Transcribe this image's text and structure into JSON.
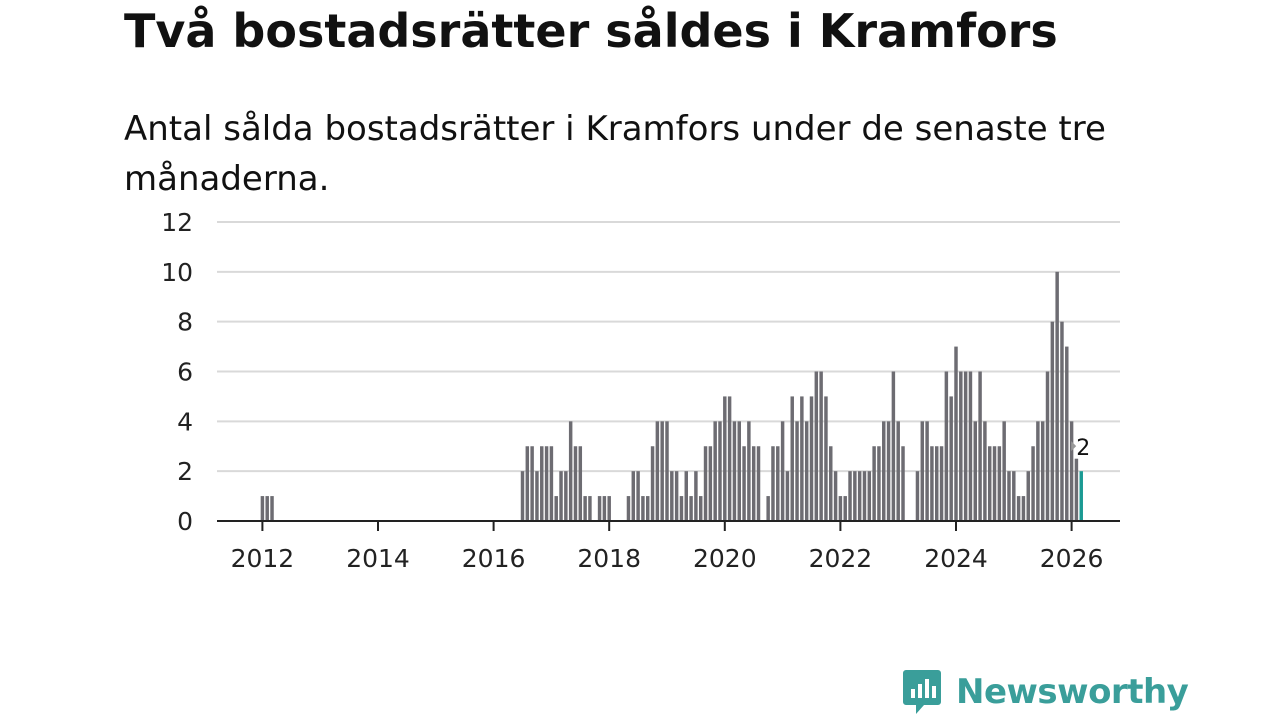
{
  "title": "Två bostadsrätter såldes i Kramfors",
  "subtitle": "Antal sålda bostadsrätter i Kramfors under de senaste tre månaderna.",
  "brand": {
    "name": "Newsworthy",
    "logo_icon": "newsworthy-chart-bubble-icon"
  },
  "colors": {
    "bar": "#6d6c72",
    "highlight": "#1a9a93",
    "grid": "#d9d9d9",
    "axis": "#222222",
    "brand": "#3a9e9a"
  },
  "chart_data": {
    "type": "bar",
    "title": "Två bostadsrätter såldes i Kramfors",
    "xlabel": "",
    "ylabel": "",
    "ylim": [
      0,
      12
    ],
    "yticks": [
      0,
      2,
      4,
      6,
      8,
      10,
      12
    ],
    "xticks": [
      "2012",
      "2014",
      "2016",
      "2018",
      "2020",
      "2022",
      "2024",
      "2026"
    ],
    "xlim": [
      "2011-01",
      "2026-12"
    ],
    "grid": true,
    "series": [
      {
        "name": "Sålda bostadsrätter",
        "data": [
          [
            "2012-01",
            1
          ],
          [
            "2012-02",
            1
          ],
          [
            "2012-03",
            1
          ],
          [
            "2016-07",
            2
          ],
          [
            "2016-08",
            3
          ],
          [
            "2016-09",
            3
          ],
          [
            "2016-10",
            2
          ],
          [
            "2016-11",
            3
          ],
          [
            "2016-12",
            3
          ],
          [
            "2017-01",
            3
          ],
          [
            "2017-02",
            1
          ],
          [
            "2017-03",
            2
          ],
          [
            "2017-04",
            2
          ],
          [
            "2017-05",
            4
          ],
          [
            "2017-06",
            3
          ],
          [
            "2017-07",
            3
          ],
          [
            "2017-08",
            1
          ],
          [
            "2017-09",
            1
          ],
          [
            "2017-11",
            1
          ],
          [
            "2017-12",
            1
          ],
          [
            "2018-01",
            1
          ],
          [
            "2018-05",
            1
          ],
          [
            "2018-06",
            2
          ],
          [
            "2018-07",
            2
          ],
          [
            "2018-08",
            1
          ],
          [
            "2018-09",
            1
          ],
          [
            "2018-10",
            3
          ],
          [
            "2018-11",
            4
          ],
          [
            "2018-12",
            4
          ],
          [
            "2019-01",
            4
          ],
          [
            "2019-02",
            2
          ],
          [
            "2019-03",
            2
          ],
          [
            "2019-04",
            1
          ],
          [
            "2019-05",
            2
          ],
          [
            "2019-06",
            1
          ],
          [
            "2019-07",
            2
          ],
          [
            "2019-08",
            1
          ],
          [
            "2019-09",
            3
          ],
          [
            "2019-10",
            3
          ],
          [
            "2019-11",
            4
          ],
          [
            "2019-12",
            4
          ],
          [
            "2020-01",
            5
          ],
          [
            "2020-02",
            5
          ],
          [
            "2020-03",
            4
          ],
          [
            "2020-04",
            4
          ],
          [
            "2020-05",
            3
          ],
          [
            "2020-06",
            4
          ],
          [
            "2020-07",
            3
          ],
          [
            "2020-08",
            3
          ],
          [
            "2020-10",
            1
          ],
          [
            "2020-11",
            3
          ],
          [
            "2020-12",
            3
          ],
          [
            "2021-01",
            4
          ],
          [
            "2021-02",
            2
          ],
          [
            "2021-03",
            5
          ],
          [
            "2021-04",
            4
          ],
          [
            "2021-05",
            5
          ],
          [
            "2021-06",
            4
          ],
          [
            "2021-07",
            5
          ],
          [
            "2021-08",
            6
          ],
          [
            "2021-09",
            6
          ],
          [
            "2021-10",
            5
          ],
          [
            "2021-11",
            3
          ],
          [
            "2021-12",
            2
          ],
          [
            "2022-01",
            1
          ],
          [
            "2022-02",
            1
          ],
          [
            "2022-03",
            2
          ],
          [
            "2022-04",
            2
          ],
          [
            "2022-05",
            2
          ],
          [
            "2022-06",
            2
          ],
          [
            "2022-07",
            2
          ],
          [
            "2022-08",
            3
          ],
          [
            "2022-09",
            3
          ],
          [
            "2022-10",
            4
          ],
          [
            "2022-11",
            4
          ],
          [
            "2022-12",
            6
          ],
          [
            "2023-01",
            4
          ],
          [
            "2023-02",
            3
          ],
          [
            "2023-05",
            2
          ],
          [
            "2023-06",
            4
          ],
          [
            "2023-07",
            4
          ],
          [
            "2023-08",
            3
          ],
          [
            "2023-09",
            3
          ],
          [
            "2023-10",
            3
          ],
          [
            "2023-11",
            6
          ],
          [
            "2023-12",
            5
          ],
          [
            "2024-01",
            7
          ],
          [
            "2024-02",
            6
          ],
          [
            "2024-03",
            6
          ],
          [
            "2024-04",
            6
          ],
          [
            "2024-05",
            4
          ],
          [
            "2024-06",
            6
          ],
          [
            "2024-07",
            4
          ],
          [
            "2024-08",
            3
          ],
          [
            "2024-09",
            3
          ],
          [
            "2024-10",
            3
          ],
          [
            "2024-11",
            4
          ],
          [
            "2024-12",
            2
          ],
          [
            "2025-01",
            2
          ],
          [
            "2025-02",
            1
          ],
          [
            "2025-03",
            1
          ],
          [
            "2025-04",
            2
          ],
          [
            "2025-05",
            3
          ],
          [
            "2025-06",
            4
          ],
          [
            "2025-07",
            4
          ],
          [
            "2025-08",
            6
          ],
          [
            "2025-09",
            8
          ],
          [
            "2025-10",
            10
          ],
          [
            "2025-11",
            8
          ],
          [
            "2025-12",
            7
          ],
          [
            "2026-01",
            4
          ],
          [
            "2026-02",
            2.5
          ],
          [
            "2026-03",
            2
          ]
        ]
      }
    ],
    "annotations": [
      {
        "x": "2026-03",
        "value": 2,
        "text": "2"
      }
    ]
  }
}
